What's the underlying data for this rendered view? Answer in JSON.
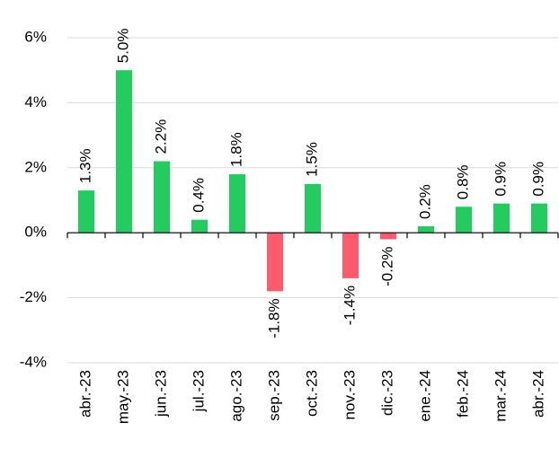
{
  "chart_data": {
    "type": "bar",
    "categories": [
      "abr.-23",
      "may.-23",
      "jun.-23",
      "jul.-23",
      "ago.-23",
      "sep.-23",
      "oct.-23",
      "nov.-23",
      "dic.-23",
      "ene.-24",
      "feb.-24",
      "mar.-24",
      "abr.-24"
    ],
    "values": [
      1.3,
      5.0,
      2.2,
      0.4,
      1.8,
      -1.8,
      1.5,
      -1.4,
      -0.2,
      0.2,
      0.8,
      0.9,
      0.9
    ],
    "value_labels": [
      "1.3%",
      "5.0%",
      "2.2%",
      "0.4%",
      "1.8%",
      "-1.8%",
      "1.5%",
      "-1.4%",
      "-0.2%",
      "0.2%",
      "0.8%",
      "0.9%",
      "0.9%"
    ],
    "positive_color": "#22cc5e",
    "negative_color": "#ff5a6e",
    "ylim": [
      -4,
      6
    ],
    "yticks": [
      {
        "value": -4,
        "label": "-4%"
      },
      {
        "value": -2,
        "label": "-2%"
      },
      {
        "value": 0,
        "label": "0%"
      },
      {
        "value": 2,
        "label": "2%"
      },
      {
        "value": 4,
        "label": "4%"
      },
      {
        "value": 6,
        "label": "6%"
      }
    ],
    "grid": true
  }
}
